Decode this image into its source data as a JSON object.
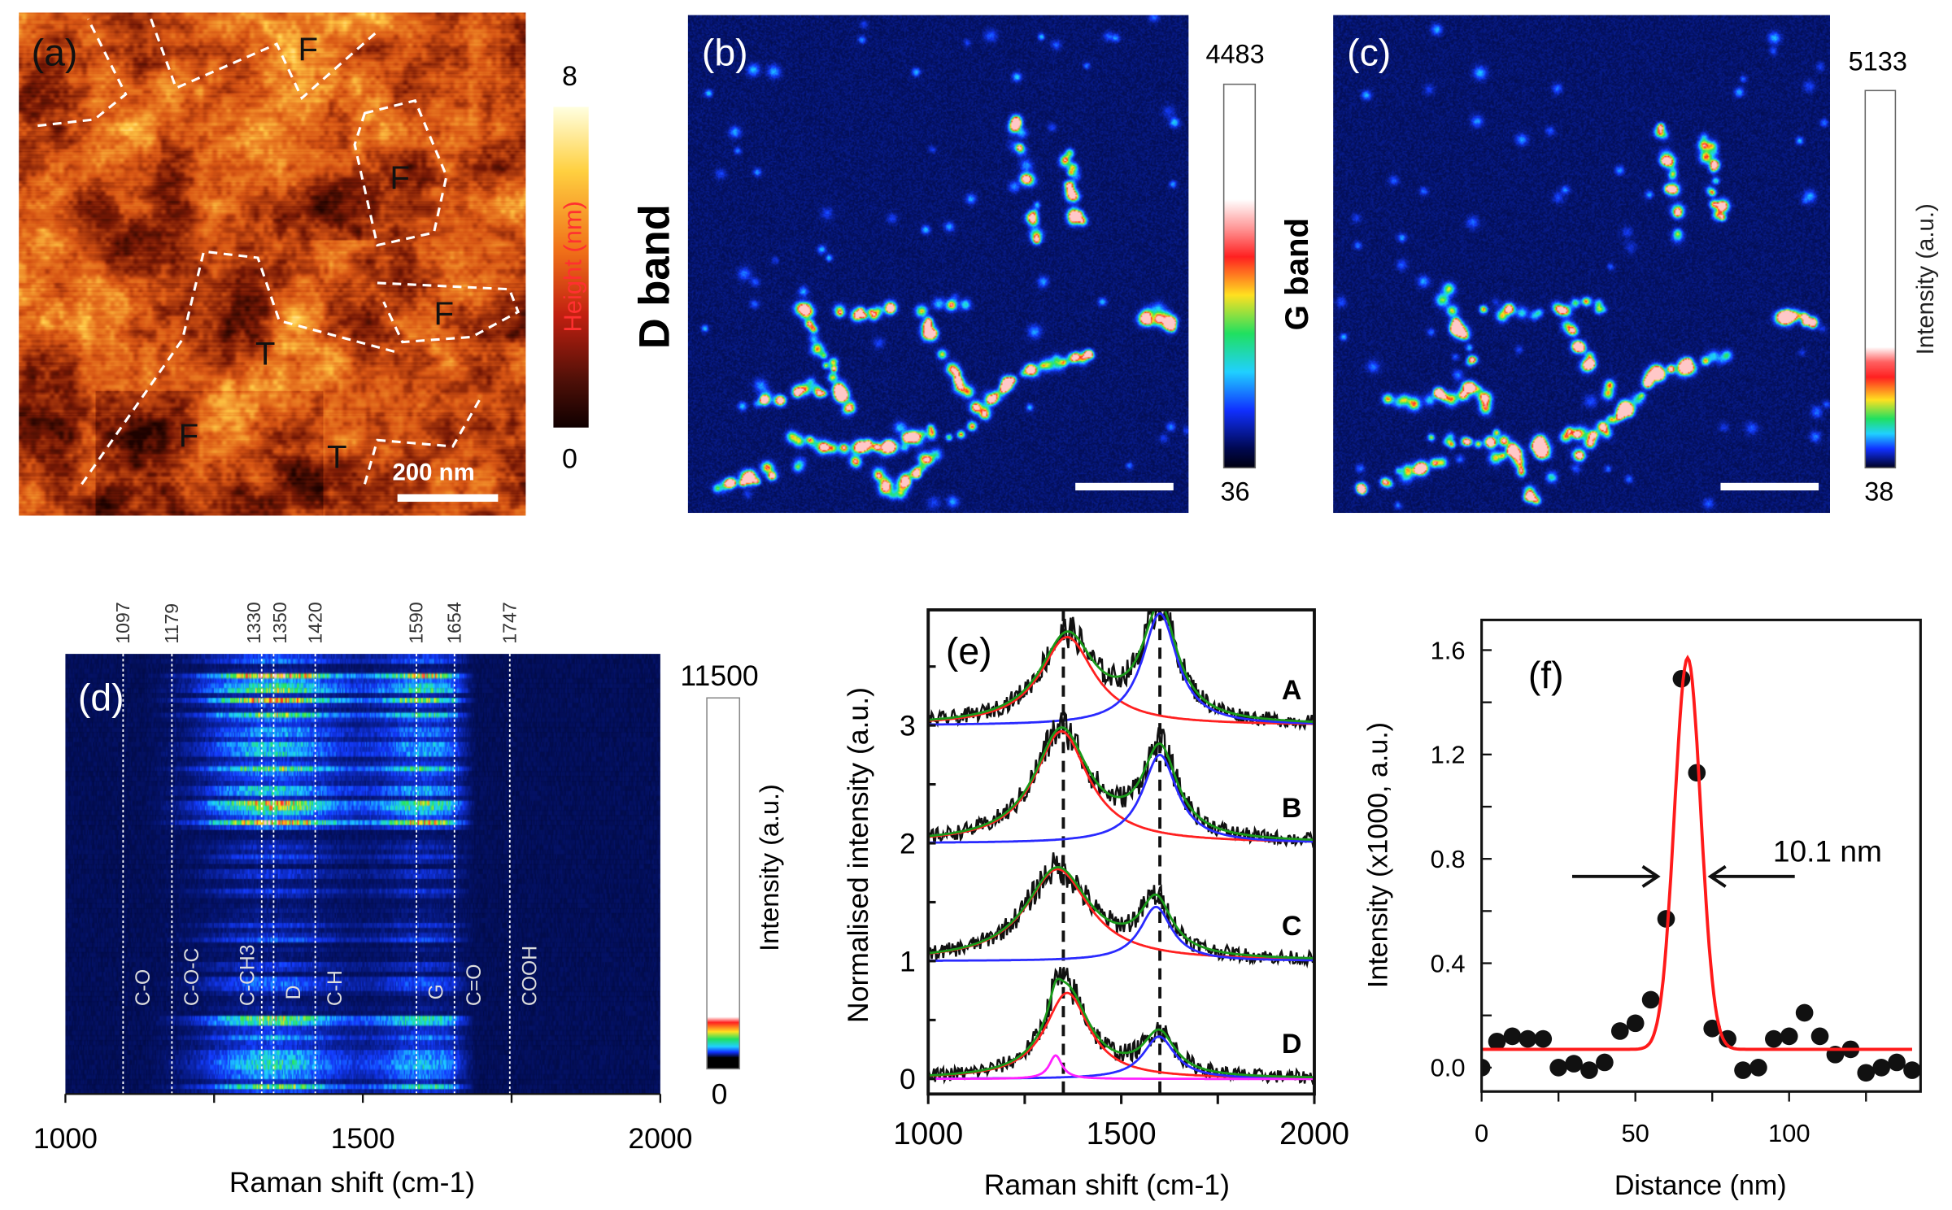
{
  "panels": {
    "a": {
      "label": "(a)",
      "colorbar_label": "Height (nm)",
      "cb_max": "8",
      "cb_min": "0",
      "scale_bar": "200 nm",
      "region_labels": [
        "F",
        "F",
        "F",
        "T",
        "F",
        "T"
      ]
    },
    "b": {
      "label": "(b)",
      "side_label": "D band",
      "cb_max": "4483",
      "cb_min": "36"
    },
    "c": {
      "label": "(c)",
      "side_label": "G band",
      "cb_max": "5133",
      "cb_min": "38",
      "colorbar_label": "Intensity (a.u.)"
    },
    "d": {
      "label": "(d)",
      "cb_max": "11500",
      "cb_min": "0",
      "colorbar_label": "Intensity (a.u.)"
    },
    "e": {
      "label": "(e)"
    },
    "f": {
      "label": "(f)",
      "annotation": "10.1 nm"
    }
  },
  "colors": {
    "fit_total": "#1a9a1a",
    "fit_D": "#ff2020",
    "fit_G": "#2a2aff",
    "fit_extra": "#ff20ff",
    "data": "#111111",
    "fit_f": "#ff1a1a"
  },
  "chart_data": [
    {
      "panel": "a",
      "type": "heatmap",
      "zlabel": "Height (nm)",
      "zlim": [
        0,
        8
      ],
      "colormap": "afm-orange"
    },
    {
      "panel": "b",
      "type": "heatmap",
      "zlabel": "D band",
      "zlim": [
        36,
        4483
      ],
      "colormap": "jet-white"
    },
    {
      "panel": "c",
      "type": "heatmap",
      "zlabel": "Intensity (a.u.)",
      "title": "G band",
      "zlim": [
        38,
        5133
      ],
      "colormap": "jet-white"
    },
    {
      "panel": "d",
      "type": "heatmap",
      "xlabel": "Raman shift (cm-1)",
      "xlim": [
        1000,
        2000
      ],
      "xticks": [
        "1000",
        "1500",
        "2000"
      ],
      "zlabel": "Intensity (a.u.)",
      "zlim": [
        0,
        11500
      ],
      "band_lines": [
        {
          "x": 1097,
          "label": "1097",
          "band": "C-O"
        },
        {
          "x": 1179,
          "label": "1179",
          "band": "C-O-C"
        },
        {
          "x": 1330,
          "label": "1330",
          "band": "C-CH3"
        },
        {
          "x": 1350,
          "label": "1350",
          "band": "D"
        },
        {
          "x": 1420,
          "label": "1420",
          "band": "C-H"
        },
        {
          "x": 1590,
          "label": "1590",
          "band": "G"
        },
        {
          "x": 1654,
          "label": "1654",
          "band": "C=O"
        },
        {
          "x": 1747,
          "label": "1747",
          "band": "COOH"
        }
      ]
    },
    {
      "panel": "e",
      "type": "line",
      "xlabel": "Raman shift (cm-1)",
      "ylabel": "Normalised intensity (a.u.)",
      "xlim": [
        1000,
        2000
      ],
      "ylim": [
        -0.1,
        3.9
      ],
      "xticks": [
        "1000",
        "1500",
        "2000"
      ],
      "yticks": [
        "0",
        "1",
        "2",
        "3"
      ],
      "dashed_lines": [
        1350,
        1600
      ],
      "series": [
        {
          "name": "A",
          "offset": 3,
          "peaks": [
            {
              "band": "D",
              "center": 1360,
              "height": 0.75,
              "fwhm": 170
            },
            {
              "band": "G",
              "center": 1600,
              "height": 0.95,
              "fwhm": 110
            }
          ]
        },
        {
          "name": "B",
          "offset": 2,
          "peaks": [
            {
              "band": "D",
              "center": 1345,
              "height": 0.95,
              "fwhm": 170
            },
            {
              "band": "G",
              "center": 1600,
              "height": 0.75,
              "fwhm": 110
            }
          ]
        },
        {
          "name": "C",
          "offset": 1,
          "peaks": [
            {
              "band": "D",
              "center": 1335,
              "height": 0.78,
              "fwhm": 200
            },
            {
              "band": "G",
              "center": 1590,
              "height": 0.46,
              "fwhm": 100
            }
          ]
        },
        {
          "name": "D",
          "offset": 0,
          "peaks": [
            {
              "band": "D",
              "center": 1360,
              "height": 0.73,
              "fwhm": 140
            },
            {
              "band": "G",
              "center": 1598,
              "height": 0.36,
              "fwhm": 100
            },
            {
              "band": "extra",
              "center": 1330,
              "height": 0.2,
              "fwhm": 40
            }
          ]
        }
      ]
    },
    {
      "panel": "f",
      "type": "scatter",
      "xlabel": "Distance (nm)",
      "ylabel": "Intensity (x1000, a.u.)",
      "xlim": [
        0,
        143
      ],
      "ylim": [
        -0.09,
        1.71
      ],
      "xticks": [
        "0",
        "50",
        "100"
      ],
      "yticks": [
        "0.0",
        "0.4",
        "0.8",
        "1.2",
        "1.6"
      ],
      "x": [
        0,
        5,
        10,
        15,
        20,
        25,
        30,
        35,
        40,
        45,
        50,
        55,
        60,
        65,
        70,
        75,
        80,
        85,
        90,
        95,
        100,
        105,
        110,
        115,
        120,
        125,
        130,
        135,
        140
      ],
      "y": [
        0.0,
        0.1,
        0.12,
        0.11,
        0.11,
        0.0,
        0.015,
        -0.01,
        0.02,
        0.14,
        0.17,
        0.26,
        0.57,
        1.49,
        1.13,
        0.15,
        0.11,
        -0.01,
        0.0,
        0.11,
        0.12,
        0.21,
        0.12,
        0.05,
        0.07,
        -0.02,
        0.0,
        0.02,
        -0.01
      ],
      "fit": {
        "type": "gaussian",
        "center": 67,
        "peak": 1.57,
        "baseline": 0.07,
        "fwhm_nm": 10.1
      }
    }
  ]
}
